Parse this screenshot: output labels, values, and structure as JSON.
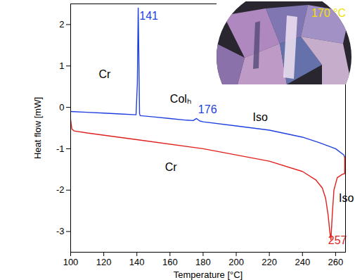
{
  "chart_data": {
    "type": "line",
    "xlabel": "Temperature [°C]",
    "ylabel": "Heat flow [mW]",
    "xlim": [
      100,
      266
    ],
    "ylim": [
      -3.5,
      2.5
    ],
    "xticks": [
      100,
      120,
      140,
      160,
      180,
      200,
      220,
      240,
      260
    ],
    "yticks": [
      -3,
      -2,
      -1,
      0,
      1,
      2
    ],
    "grid": false,
    "series": [
      {
        "color": "#1f3fe0",
        "x": [
          100,
          110,
          120,
          130,
          139.5,
          140.3,
          140.8,
          141.2,
          141.6,
          142,
          150,
          160,
          170,
          174,
          176,
          178,
          180,
          200,
          220,
          240,
          250,
          260,
          265,
          265.5
        ],
        "values": [
          -0.1,
          -0.12,
          -0.14,
          -0.16,
          -0.18,
          0.6,
          2.4,
          1.2,
          -0.15,
          -0.2,
          -0.23,
          -0.27,
          -0.31,
          -0.32,
          -0.27,
          -0.33,
          -0.35,
          -0.45,
          -0.55,
          -0.72,
          -0.85,
          -1.0,
          -1.15,
          -1.2
        ]
      },
      {
        "color": "#e0201c",
        "x": [
          100,
          100.7,
          102,
          110,
          140,
          180,
          220,
          240,
          248,
          252,
          254,
          255.5,
          256.5,
          257.2,
          258,
          259,
          261,
          264,
          265.5,
          265.5
        ],
        "values": [
          -0.3,
          -0.52,
          -0.57,
          -0.62,
          -0.78,
          -1.0,
          -1.3,
          -1.55,
          -1.75,
          -1.95,
          -2.2,
          -2.6,
          -3.0,
          -3.2,
          -2.6,
          -2.0,
          -1.7,
          -1.62,
          -1.6,
          -1.2
        ]
      }
    ],
    "annotations": [
      {
        "text": "141",
        "x": 141.5,
        "y": 2.2,
        "color": "#1f3fe0"
      },
      {
        "text": "176",
        "x": 177,
        "y": -0.05,
        "color": "#1f3fe0"
      },
      {
        "text": "257",
        "x": 255.5,
        "y": -3.22,
        "color": "#e0201c"
      },
      {
        "text": "Cr",
        "x": 117,
        "y": 0.8,
        "color": "#000000"
      },
      {
        "text": "Colₕ",
        "x": 160,
        "y": 0.2,
        "color": "#000000"
      },
      {
        "text": "Iso",
        "x": 210,
        "y": -0.25,
        "color": "#000000"
      },
      {
        "text": "Cr",
        "x": 157,
        "y": -1.45,
        "color": "#000000"
      },
      {
        "text": "Iso",
        "x": 262,
        "y": -2.2,
        "color": "#000000"
      }
    ],
    "image_label": "170 °C"
  }
}
